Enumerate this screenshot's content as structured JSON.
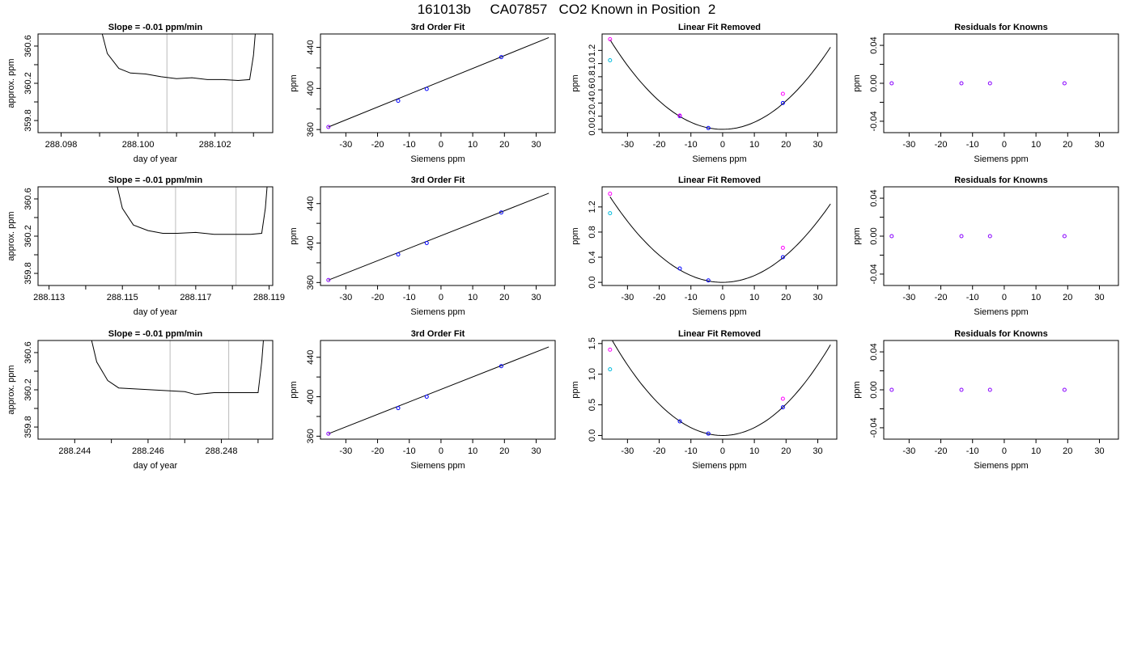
{
  "page": {
    "title": "161013b     CA07857   CO2 Known in Position  2"
  },
  "colors": {
    "line": "#000000",
    "marker_line": "#bbbbbb",
    "point_blue": "#0000ff",
    "point_magenta": "#ff00ff",
    "point_cyan": "#00bbdd",
    "point_purple": "#8800ff"
  },
  "chart_data": [
    {
      "type": "line",
      "row": 0,
      "title": "Slope =  -0.01  ppm/min",
      "xlabel": "day of year",
      "ylabel": "approx. ppm",
      "xlim": [
        288.0974,
        288.1035
      ],
      "ylim": [
        359.67,
        360.73
      ],
      "xticks": [
        288.098,
        288.099,
        288.1,
        288.101,
        288.102,
        288.103
      ],
      "xticklabels": [
        "288.098",
        "",
        "288.100",
        "",
        "288.102",
        ""
      ],
      "yticks": [
        359.8,
        360.0,
        360.2,
        360.4,
        360.6
      ],
      "yticklabels": [
        "359.8",
        "",
        "360.2",
        "",
        "360.6"
      ],
      "markers": [
        288.10075,
        288.10245
      ],
      "trace": [
        [
          288.0989,
          361.0
        ],
        [
          288.0992,
          360.52
        ],
        [
          288.0995,
          360.36
        ],
        [
          288.0998,
          360.31
        ],
        [
          288.1002,
          360.3
        ],
        [
          288.1006,
          360.27
        ],
        [
          288.101,
          360.25
        ],
        [
          288.1014,
          360.26
        ],
        [
          288.1018,
          360.24
        ],
        [
          288.1022,
          360.24
        ],
        [
          288.1026,
          360.23
        ],
        [
          288.1029,
          360.24
        ],
        [
          288.103,
          360.5
        ],
        [
          288.1031,
          361.0
        ]
      ]
    },
    {
      "type": "scatter",
      "row": 0,
      "title": "3rd Order Fit",
      "xlabel": "Siemens ppm",
      "ylabel": "ppm",
      "xlim": [
        -38,
        36
      ],
      "ylim": [
        357,
        453
      ],
      "xticks": [
        -30,
        -20,
        -10,
        0,
        10,
        20,
        30
      ],
      "xticklabels": [
        "-30",
        "-20",
        "-10",
        "0",
        "10",
        "20",
        "30"
      ],
      "yticks": [
        360,
        380,
        400,
        420,
        440
      ],
      "yticklabels": [
        "360",
        "",
        "400",
        "",
        "440"
      ],
      "fit_line": [
        [
          -35.5,
          362.5
        ],
        [
          34,
          449.5
        ]
      ],
      "points": [
        {
          "x": -35.5,
          "y": 362.5,
          "color": "purple"
        },
        {
          "x": -13.5,
          "y": 388.0,
          "color": "blue"
        },
        {
          "x": -4.5,
          "y": 399.5,
          "color": "blue"
        },
        {
          "x": 19,
          "y": 430.5,
          "color": "blue"
        }
      ]
    },
    {
      "type": "scatter",
      "row": 0,
      "title": "Linear Fit Removed",
      "xlabel": "Siemens ppm",
      "ylabel": "ppm",
      "xlim": [
        -38,
        36
      ],
      "ylim": [
        -0.05,
        1.45
      ],
      "xticks": [
        -30,
        -20,
        -10,
        0,
        10,
        20,
        30
      ],
      "xticklabels": [
        "-30",
        "-20",
        "-10",
        "0",
        "10",
        "20",
        "30"
      ],
      "yticks": [
        0.0,
        0.2,
        0.4,
        0.6,
        0.8,
        1.0,
        1.2
      ],
      "yticklabels": [
        "0.0",
        "0.2",
        "0.4",
        "0.6",
        "0.8",
        "1.0",
        "1.2"
      ],
      "curve": {
        "a": 0.00108,
        "x0": 0,
        "xmin": -35.5,
        "xmax": 34
      },
      "points": [
        {
          "x": -35.5,
          "y": 1.37,
          "color": "magenta"
        },
        {
          "x": -35.5,
          "y": 1.05,
          "color": "cyan"
        },
        {
          "x": -13.5,
          "y": 0.2,
          "color": "blue"
        },
        {
          "x": -13.5,
          "y": 0.21,
          "color": "magenta"
        },
        {
          "x": -4.5,
          "y": 0.02,
          "color": "blue"
        },
        {
          "x": 19,
          "y": 0.4,
          "color": "blue"
        },
        {
          "x": 19,
          "y": 0.54,
          "color": "magenta"
        }
      ]
    },
    {
      "type": "scatter",
      "row": 0,
      "title": "Residuals for Knowns",
      "xlabel": "Siemens ppm",
      "ylabel": "ppm",
      "xlim": [
        -38,
        36
      ],
      "ylim": [
        -0.052,
        0.052
      ],
      "xticks": [
        -30,
        -20,
        -10,
        0,
        10,
        20,
        30
      ],
      "xticklabels": [
        "-30",
        "-20",
        "-10",
        "0",
        "10",
        "20",
        "30"
      ],
      "yticks": [
        -0.04,
        -0.02,
        0.0,
        0.02,
        0.04
      ],
      "yticklabels": [
        "-0.04",
        "",
        "0.00",
        "",
        "0.04"
      ],
      "points": [
        {
          "x": -35.5,
          "y": 0,
          "color": "purple"
        },
        {
          "x": -13.5,
          "y": 0,
          "color": "purple"
        },
        {
          "x": -4.5,
          "y": 0,
          "color": "purple"
        },
        {
          "x": 19,
          "y": 0,
          "color": "purple"
        }
      ]
    },
    {
      "type": "line",
      "row": 1,
      "title": "Slope =  -0.01  ppm/min",
      "xlabel": "day of year",
      "ylabel": "approx. ppm",
      "xlim": [
        288.1127,
        288.1191
      ],
      "ylim": [
        359.67,
        360.73
      ],
      "xticks": [
        288.113,
        288.114,
        288.115,
        288.116,
        288.117,
        288.118,
        288.119
      ],
      "xticklabels": [
        "288.113",
        "",
        "288.115",
        "",
        "288.117",
        "",
        "288.119"
      ],
      "yticks": [
        359.8,
        360.0,
        360.2,
        360.4,
        360.6
      ],
      "yticklabels": [
        "359.8",
        "",
        "360.2",
        "",
        "360.6"
      ],
      "markers": [
        288.11645,
        288.1181
      ],
      "trace": [
        [
          288.1147,
          361.0
        ],
        [
          288.115,
          360.5
        ],
        [
          288.1153,
          360.32
        ],
        [
          288.1157,
          360.26
        ],
        [
          288.1161,
          360.23
        ],
        [
          288.1165,
          360.23
        ],
        [
          288.117,
          360.24
        ],
        [
          288.1175,
          360.22
        ],
        [
          288.118,
          360.22
        ],
        [
          288.1185,
          360.22
        ],
        [
          288.1188,
          360.23
        ],
        [
          288.1189,
          360.5
        ],
        [
          288.119,
          361.0
        ]
      ]
    },
    {
      "type": "scatter",
      "row": 1,
      "title": "3rd Order Fit",
      "xlabel": "Siemens ppm",
      "ylabel": "ppm",
      "xlim": [
        -38,
        36
      ],
      "ylim": [
        357,
        457
      ],
      "xticks": [
        -30,
        -20,
        -10,
        0,
        10,
        20,
        30
      ],
      "xticklabels": [
        "-30",
        "-20",
        "-10",
        "0",
        "10",
        "20",
        "30"
      ],
      "yticks": [
        360,
        380,
        400,
        420,
        440
      ],
      "yticklabels": [
        "360",
        "",
        "400",
        "",
        "440"
      ],
      "fit_line": [
        [
          -35.5,
          362.5
        ],
        [
          34,
          450.5
        ]
      ],
      "points": [
        {
          "x": -35.5,
          "y": 362.5,
          "color": "purple"
        },
        {
          "x": -13.5,
          "y": 388.5,
          "color": "blue"
        },
        {
          "x": -4.5,
          "y": 400.0,
          "color": "blue"
        },
        {
          "x": 19,
          "y": 431.0,
          "color": "blue"
        }
      ]
    },
    {
      "type": "scatter",
      "row": 1,
      "title": "Linear Fit Removed",
      "xlabel": "Siemens ppm",
      "ylabel": "ppm",
      "xlim": [
        -38,
        36
      ],
      "ylim": [
        -0.05,
        1.52
      ],
      "xticks": [
        -30,
        -20,
        -10,
        0,
        10,
        20,
        30
      ],
      "xticklabels": [
        "-30",
        "-20",
        "-10",
        "0",
        "10",
        "20",
        "30"
      ],
      "yticks": [
        0.0,
        0.4,
        0.8,
        1.2
      ],
      "yticklabels": [
        "0.0",
        "0.4",
        "0.8",
        "1.2"
      ],
      "curve": {
        "a": 0.00108,
        "x0": 0,
        "xmin": -35.5,
        "xmax": 34
      },
      "points": [
        {
          "x": -35.5,
          "y": 1.41,
          "color": "magenta"
        },
        {
          "x": -35.5,
          "y": 1.1,
          "color": "cyan"
        },
        {
          "x": -13.5,
          "y": 0.22,
          "color": "blue"
        },
        {
          "x": -4.5,
          "y": 0.03,
          "color": "blue"
        },
        {
          "x": 19,
          "y": 0.4,
          "color": "blue"
        },
        {
          "x": 19,
          "y": 0.55,
          "color": "magenta"
        }
      ]
    },
    {
      "type": "scatter",
      "row": 1,
      "title": "Residuals for Knowns",
      "xlabel": "Siemens ppm",
      "ylabel": "ppm",
      "xlim": [
        -38,
        36
      ],
      "ylim": [
        -0.052,
        0.052
      ],
      "xticks": [
        -30,
        -20,
        -10,
        0,
        10,
        20,
        30
      ],
      "xticklabels": [
        "-30",
        "-20",
        "-10",
        "0",
        "10",
        "20",
        "30"
      ],
      "yticks": [
        -0.04,
        -0.02,
        0.0,
        0.02,
        0.04
      ],
      "yticklabels": [
        "-0.04",
        "",
        "0.00",
        "",
        "0.04"
      ],
      "points": [
        {
          "x": -35.5,
          "y": 0,
          "color": "purple"
        },
        {
          "x": -13.5,
          "y": 0,
          "color": "purple"
        },
        {
          "x": -4.5,
          "y": 0,
          "color": "purple"
        },
        {
          "x": 19,
          "y": 0,
          "color": "purple"
        }
      ]
    },
    {
      "type": "line",
      "row": 2,
      "title": "Slope =  -0.01  ppm/min",
      "xlabel": "day of year",
      "ylabel": "approx. ppm",
      "xlim": [
        288.243,
        288.2494
      ],
      "ylim": [
        359.67,
        360.73
      ],
      "xticks": [
        288.244,
        288.245,
        288.246,
        288.247,
        288.248,
        288.249
      ],
      "xticklabels": [
        "288.244",
        "",
        "288.246",
        "",
        "288.248",
        ""
      ],
      "yticks": [
        359.8,
        360.0,
        360.2,
        360.4,
        360.6
      ],
      "yticklabels": [
        "359.8",
        "",
        "360.2",
        "",
        "360.6"
      ],
      "markers": [
        288.2466,
        288.2482
      ],
      "trace": [
        [
          288.2443,
          361.0
        ],
        [
          288.2446,
          360.5
        ],
        [
          288.2449,
          360.3
        ],
        [
          288.2452,
          360.22
        ],
        [
          288.2456,
          360.21
        ],
        [
          288.2461,
          360.2
        ],
        [
          288.2466,
          360.19
        ],
        [
          288.247,
          360.18
        ],
        [
          288.2473,
          360.15
        ],
        [
          288.2478,
          360.17
        ],
        [
          288.2484,
          360.17
        ],
        [
          288.249,
          360.17
        ],
        [
          288.2491,
          360.5
        ],
        [
          288.2492,
          361.0
        ]
      ]
    },
    {
      "type": "scatter",
      "row": 2,
      "title": "3rd Order Fit",
      "xlabel": "Siemens ppm",
      "ylabel": "ppm",
      "xlim": [
        -38,
        36
      ],
      "ylim": [
        357,
        457
      ],
      "xticks": [
        -30,
        -20,
        -10,
        0,
        10,
        20,
        30
      ],
      "xticklabels": [
        "-30",
        "-20",
        "-10",
        "0",
        "10",
        "20",
        "30"
      ],
      "yticks": [
        360,
        380,
        400,
        420,
        440
      ],
      "yticklabels": [
        "360",
        "",
        "400",
        "",
        "440"
      ],
      "fit_line": [
        [
          -35.5,
          362.5
        ],
        [
          34,
          450.5
        ]
      ],
      "points": [
        {
          "x": -35.5,
          "y": 362.5,
          "color": "purple"
        },
        {
          "x": -13.5,
          "y": 388.5,
          "color": "blue"
        },
        {
          "x": -4.5,
          "y": 400.0,
          "color": "blue"
        },
        {
          "x": 19,
          "y": 431.0,
          "color": "blue"
        }
      ]
    },
    {
      "type": "scatter",
      "row": 2,
      "title": "Linear Fit Removed",
      "xlabel": "Siemens ppm",
      "ylabel": "ppm",
      "xlim": [
        -38,
        36
      ],
      "ylim": [
        -0.06,
        1.55
      ],
      "xticks": [
        -30,
        -20,
        -10,
        0,
        10,
        20,
        30
      ],
      "xticklabels": [
        "-30",
        "-20",
        "-10",
        "0",
        "10",
        "20",
        "30"
      ],
      "yticks": [
        0.0,
        0.5,
        1.0,
        1.5
      ],
      "yticklabels": [
        "0.0",
        "0.5",
        "1.0",
        "1.5"
      ],
      "curve": {
        "a": 0.00128,
        "x0": 0,
        "xmin": -35.5,
        "xmax": 34
      },
      "points": [
        {
          "x": -35.5,
          "y": 1.4,
          "color": "magenta"
        },
        {
          "x": -35.5,
          "y": 1.08,
          "color": "cyan"
        },
        {
          "x": -13.5,
          "y": 0.23,
          "color": "blue"
        },
        {
          "x": -4.5,
          "y": 0.03,
          "color": "blue"
        },
        {
          "x": 19,
          "y": 0.46,
          "color": "blue"
        },
        {
          "x": 19,
          "y": 0.6,
          "color": "magenta"
        }
      ]
    },
    {
      "type": "scatter",
      "row": 2,
      "title": "Residuals for Knowns",
      "xlabel": "Siemens ppm",
      "ylabel": "ppm",
      "xlim": [
        -38,
        36
      ],
      "ylim": [
        -0.052,
        0.052
      ],
      "xticks": [
        -30,
        -20,
        -10,
        0,
        10,
        20,
        30
      ],
      "xticklabels": [
        "-30",
        "-20",
        "-10",
        "0",
        "10",
        "20",
        "30"
      ],
      "yticks": [
        -0.04,
        -0.02,
        0.0,
        0.02,
        0.04
      ],
      "yticklabels": [
        "-0.04",
        "",
        "0.00",
        "",
        "0.04"
      ],
      "points": [
        {
          "x": -35.5,
          "y": 0,
          "color": "purple"
        },
        {
          "x": -13.5,
          "y": 0,
          "color": "purple"
        },
        {
          "x": -4.5,
          "y": 0,
          "color": "purple"
        },
        {
          "x": 19,
          "y": 0,
          "color": "purple"
        }
      ]
    }
  ]
}
